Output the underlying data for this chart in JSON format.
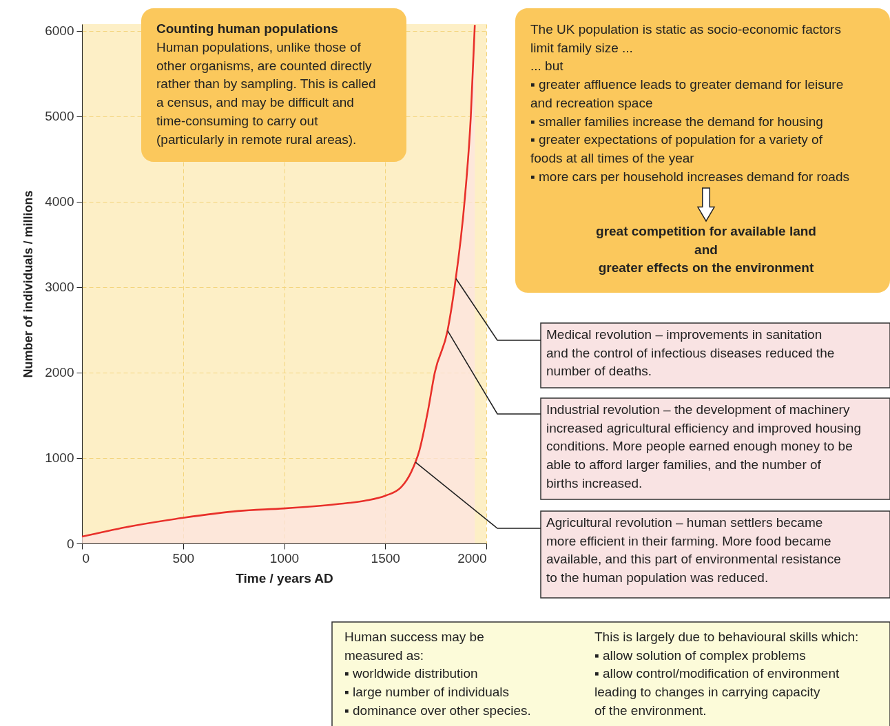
{
  "chart_data": {
    "type": "area",
    "xlabel": "Time / years AD",
    "ylabel": "Number of individuals / millions",
    "x": [
      0,
      216,
      500,
      772,
      1000,
      1259,
      1398,
      1502,
      1579,
      1627,
      1669,
      1711,
      1745,
      1808,
      1843,
      1894,
      1923,
      1943
    ],
    "series": [
      {
        "color": "#e8302a",
        "values": [
          80,
          190,
          300,
          380,
          410,
          460,
          500,
          560,
          660,
          830,
          1090,
          1550,
          2000,
          2490,
          3000,
          4050,
          4990,
          6070
        ]
      }
    ],
    "xlim": [
      0,
      2000
    ],
    "xticks": [
      0,
      500,
      1000,
      1500,
      2000
    ],
    "ylim": [
      0,
      6080
    ],
    "yticks": [
      0,
      1000,
      2000,
      3000,
      4000,
      5000,
      6000
    ],
    "grid": true,
    "marker": "none",
    "line_style": "solid",
    "annotations": [
      "Counting human populations",
      "Human populations, unlike those of\nother organisms, are counted directly\nrather than by sampling. This is called\na census, and may be difficult and\ntime-consuming to carry out\n(particularly in remote rural areas).",
      "The UK population is static as socio-economic factors\nlimit family size ...\n... but\n▪ greater affluence leads to greater demand for leisure\n   and recreation space\n▪ smaller families increase the demand for housing\n▪ greater expectations of population for a variety of\n   foods at all times of the year\n▪ more cars per household increases demand for roads",
      "great competition for available land\nand\ngreater effects on the environment",
      {
        "text": "Medical revolution – improvements in sanitation\nand the control of infectious diseases reduced the\nnumber of deaths.",
        "x": 1850,
        "y": 3100
      },
      {
        "text": "Industrial revolution – the development of machinery\nincreased agricultural efficiency and improved housing\nconditions. More people earned enough money to be\nable to afford larger families, and the number of\nbirths increased.",
        "x": 1808,
        "y": 2492
      },
      {
        "text": "Agricultural revolution – human settlers became\nmore efficient in their farming. More food became\navailable, and this part of environmental resistance\nto the human population was reduced.",
        "x": 1650,
        "y": 950
      },
      "Human success may be\nmeasured as:\n▪ worldwide distribution\n▪ large number of individuals\n▪ dominance over other species.",
      "This is largely due to behavioural skills which:\n▪ allow solution of complex problems\n▪ allow control/modification of environment\nleading to changes in carrying capacity\nof the environment."
    ]
  }
}
